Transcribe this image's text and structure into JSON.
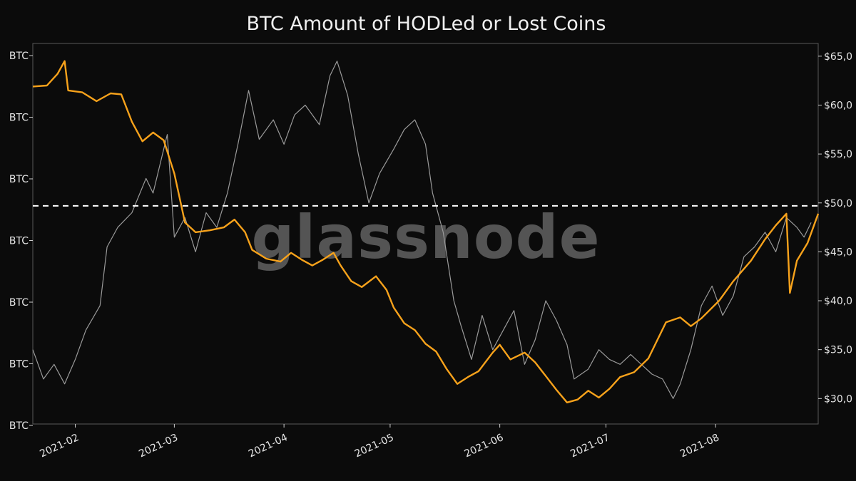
{
  "chart_data": {
    "type": "line",
    "title": "BTC Amount of HODLed or Lost Coins",
    "watermark": "glassnode",
    "x_ticks": [
      "2021-02",
      "2021-03",
      "2021-04",
      "2021-05",
      "2021-06",
      "2021-07",
      "2021-08"
    ],
    "x_range": [
      "2021-01-20",
      "2021-08-30"
    ],
    "left_axis": {
      "tick_labels": [
        "BTC",
        "BTC",
        "BTC",
        "BTC",
        "BTC",
        "BTC",
        "BTC"
      ],
      "note": "numeric prefixes of left-axis tick labels are cut off at the image edge"
    },
    "right_axis": {
      "tick_labels": [
        "$30,0",
        "$35,0",
        "$40,0",
        "$45,0",
        "$50,0",
        "$55,0",
        "$60,0",
        "$65,0"
      ],
      "tick_values": [
        30000,
        35000,
        40000,
        45000,
        50000,
        55000,
        60000,
        65000
      ],
      "range": [
        27400,
        66300
      ]
    },
    "reference_line": {
      "value": 49700,
      "axis": "right",
      "style": "dashed",
      "color": "#ffffff"
    },
    "grid": false,
    "series": [
      {
        "axis": "right",
        "color": "#9a9a9a",
        "points": [
          [
            "2021-01-20",
            35000
          ],
          [
            "2021-01-23",
            32000
          ],
          [
            "2021-01-26",
            33500
          ],
          [
            "2021-01-29",
            31500
          ],
          [
            "2021-02-01",
            34000
          ],
          [
            "2021-02-04",
            37000
          ],
          [
            "2021-02-08",
            39500
          ],
          [
            "2021-02-10",
            45500
          ],
          [
            "2021-02-13",
            47500
          ],
          [
            "2021-02-17",
            49000
          ],
          [
            "2021-02-21",
            52500
          ],
          [
            "2021-02-23",
            51000
          ],
          [
            "2021-02-27",
            57000
          ],
          [
            "2021-03-01",
            46500
          ],
          [
            "2021-03-04",
            48500
          ],
          [
            "2021-03-07",
            45000
          ],
          [
            "2021-03-10",
            49000
          ],
          [
            "2021-03-13",
            47500
          ],
          [
            "2021-03-16",
            51000
          ],
          [
            "2021-03-19",
            56000
          ],
          [
            "2021-03-22",
            61500
          ],
          [
            "2021-03-25",
            56500
          ],
          [
            "2021-03-29",
            58500
          ],
          [
            "2021-04-01",
            56000
          ],
          [
            "2021-04-04",
            59000
          ],
          [
            "2021-04-07",
            60000
          ],
          [
            "2021-04-11",
            58000
          ],
          [
            "2021-04-14",
            63000
          ],
          [
            "2021-04-16",
            64500
          ],
          [
            "2021-04-19",
            61000
          ],
          [
            "2021-04-22",
            55000
          ],
          [
            "2021-04-25",
            50000
          ],
          [
            "2021-04-28",
            53000
          ],
          [
            "2021-05-02",
            55500
          ],
          [
            "2021-05-05",
            57500
          ],
          [
            "2021-05-08",
            58500
          ],
          [
            "2021-05-11",
            56000
          ],
          [
            "2021-05-13",
            51000
          ],
          [
            "2021-05-16",
            47000
          ],
          [
            "2021-05-19",
            40000
          ],
          [
            "2021-05-21",
            37500
          ],
          [
            "2021-05-24",
            34000
          ],
          [
            "2021-05-27",
            38500
          ],
          [
            "2021-05-30",
            35000
          ],
          [
            "2021-06-02",
            37000
          ],
          [
            "2021-06-05",
            39000
          ],
          [
            "2021-06-08",
            33500
          ],
          [
            "2021-06-11",
            36000
          ],
          [
            "2021-06-14",
            40000
          ],
          [
            "2021-06-17",
            38000
          ],
          [
            "2021-06-20",
            35500
          ],
          [
            "2021-06-22",
            32000
          ],
          [
            "2021-06-26",
            33000
          ],
          [
            "2021-06-29",
            35000
          ],
          [
            "2021-07-02",
            34000
          ],
          [
            "2021-07-05",
            33500
          ],
          [
            "2021-07-08",
            34500
          ],
          [
            "2021-07-11",
            33500
          ],
          [
            "2021-07-14",
            32500
          ],
          [
            "2021-07-17",
            32000
          ],
          [
            "2021-07-20",
            30000
          ],
          [
            "2021-07-22",
            31500
          ],
          [
            "2021-07-25",
            35000
          ],
          [
            "2021-07-28",
            39500
          ],
          [
            "2021-07-31",
            41500
          ],
          [
            "2021-08-03",
            38500
          ],
          [
            "2021-08-06",
            40500
          ],
          [
            "2021-08-09",
            44500
          ],
          [
            "2021-08-12",
            45500
          ],
          [
            "2021-08-15",
            47000
          ],
          [
            "2021-08-18",
            45000
          ],
          [
            "2021-08-21",
            48500
          ],
          [
            "2021-08-24",
            47500
          ],
          [
            "2021-08-26",
            46500
          ],
          [
            "2021-08-28",
            48000
          ]
        ]
      },
      {
        "axis": "left",
        "color": "#f7a21b",
        "points": [
          [
            "2021-01-20",
            61900
          ],
          [
            "2021-01-24",
            62000
          ],
          [
            "2021-01-27",
            63200
          ],
          [
            "2021-01-29",
            64500
          ],
          [
            "2021-01-30",
            61500
          ],
          [
            "2021-02-03",
            61300
          ],
          [
            "2021-02-07",
            60400
          ],
          [
            "2021-02-11",
            61200
          ],
          [
            "2021-02-14",
            61100
          ],
          [
            "2021-02-17",
            58300
          ],
          [
            "2021-02-20",
            56300
          ],
          [
            "2021-02-23",
            57200
          ],
          [
            "2021-02-26",
            56400
          ],
          [
            "2021-03-01",
            53000
          ],
          [
            "2021-03-04",
            48000
          ],
          [
            "2021-03-07",
            47000
          ],
          [
            "2021-03-11",
            47200
          ],
          [
            "2021-03-15",
            47500
          ],
          [
            "2021-03-18",
            48300
          ],
          [
            "2021-03-21",
            47000
          ],
          [
            "2021-03-23",
            45200
          ],
          [
            "2021-03-27",
            44300
          ],
          [
            "2021-03-31",
            44000
          ],
          [
            "2021-04-03",
            44900
          ],
          [
            "2021-04-06",
            44200
          ],
          [
            "2021-04-09",
            43600
          ],
          [
            "2021-04-12",
            44200
          ],
          [
            "2021-04-15",
            44900
          ],
          [
            "2021-04-17",
            43600
          ],
          [
            "2021-04-20",
            42000
          ],
          [
            "2021-04-23",
            41400
          ],
          [
            "2021-04-27",
            42500
          ],
          [
            "2021-04-30",
            41100
          ],
          [
            "2021-05-02",
            39300
          ],
          [
            "2021-05-05",
            37700
          ],
          [
            "2021-05-08",
            37000
          ],
          [
            "2021-05-11",
            35600
          ],
          [
            "2021-05-14",
            34800
          ],
          [
            "2021-05-17",
            33000
          ],
          [
            "2021-05-20",
            31500
          ],
          [
            "2021-05-23",
            32200
          ],
          [
            "2021-05-26",
            32800
          ],
          [
            "2021-05-30",
            34700
          ],
          [
            "2021-06-01",
            35500
          ],
          [
            "2021-06-04",
            34000
          ],
          [
            "2021-06-08",
            34700
          ],
          [
            "2021-06-11",
            33700
          ],
          [
            "2021-06-14",
            32300
          ],
          [
            "2021-06-17",
            30900
          ],
          [
            "2021-06-20",
            29600
          ],
          [
            "2021-06-23",
            29900
          ],
          [
            "2021-06-26",
            30800
          ],
          [
            "2021-06-29",
            30100
          ],
          [
            "2021-07-02",
            31000
          ],
          [
            "2021-07-05",
            32200
          ],
          [
            "2021-07-09",
            32700
          ],
          [
            "2021-07-13",
            34100
          ],
          [
            "2021-07-18",
            37800
          ],
          [
            "2021-07-22",
            38300
          ],
          [
            "2021-07-25",
            37400
          ],
          [
            "2021-07-28",
            38200
          ],
          [
            "2021-08-02",
            40000
          ],
          [
            "2021-08-06",
            42000
          ],
          [
            "2021-08-11",
            44100
          ],
          [
            "2021-08-15",
            46300
          ],
          [
            "2021-08-18",
            47700
          ],
          [
            "2021-08-21",
            48900
          ],
          [
            "2021-08-22",
            40800
          ],
          [
            "2021-08-24",
            44100
          ],
          [
            "2021-08-27",
            45900
          ],
          [
            "2021-08-30",
            48900
          ]
        ]
      }
    ]
  }
}
